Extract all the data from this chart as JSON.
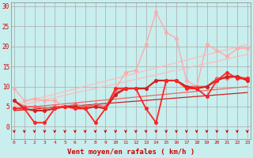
{
  "bg_color": "#c8eeee",
  "grid_color": "#aaaaaa",
  "xlabel": "Vent moyen/en rafales ( km/h )",
  "x_ticks": [
    0,
    1,
    2,
    3,
    4,
    5,
    6,
    7,
    8,
    9,
    10,
    11,
    12,
    13,
    14,
    15,
    16,
    17,
    18,
    19,
    20,
    21,
    22,
    23
  ],
  "ylim": [
    -3,
    31
  ],
  "xlim": [
    -0.3,
    23.3
  ],
  "y_ticks": [
    0,
    5,
    10,
    15,
    20,
    25,
    30
  ],
  "lines": [
    {
      "x": [
        0,
        1,
        2,
        3,
        4,
        5,
        6,
        7,
        8,
        9,
        10,
        11,
        12,
        13,
        14,
        15,
        16,
        17,
        18,
        19,
        20,
        21,
        22,
        23
      ],
      "y": [
        9.5,
        6.5,
        7.0,
        6.5,
        6.5,
        5.0,
        5.0,
        5.0,
        5.0,
        5.0,
        9.5,
        13.5,
        14.0,
        20.5,
        28.5,
        23.5,
        22.0,
        11.5,
        10.0,
        20.5,
        19.0,
        17.5,
        19.5,
        19.5
      ],
      "color": "#ffaaaa",
      "marker": "o",
      "markersize": 2.5,
      "linewidth": 1.0
    },
    {
      "x": [
        0,
        1,
        2,
        3,
        4,
        5,
        6,
        7,
        8,
        9,
        10,
        11,
        12,
        13,
        14,
        15,
        16,
        17,
        18,
        19,
        20,
        21,
        22,
        23
      ],
      "y": [
        6.5,
        5.0,
        5.0,
        4.5,
        5.0,
        5.0,
        5.5,
        5.0,
        5.5,
        5.0,
        8.5,
        9.5,
        9.5,
        9.5,
        11.5,
        11.5,
        11.5,
        10.0,
        10.0,
        10.0,
        12.0,
        12.0,
        12.5,
        12.0
      ],
      "color": "#ee6666",
      "marker": "o",
      "markersize": 2.5,
      "linewidth": 1.2
    },
    {
      "x": [
        0,
        1,
        2,
        3,
        4,
        5,
        6,
        7,
        8,
        9,
        10,
        11,
        12,
        13,
        14,
        15,
        16,
        17,
        18,
        19,
        20,
        21,
        22,
        23
      ],
      "y": [
        6.5,
        4.5,
        4.0,
        4.0,
        4.5,
        5.0,
        5.0,
        4.5,
        5.0,
        4.5,
        8.0,
        9.5,
        9.5,
        9.5,
        11.5,
        11.5,
        11.5,
        10.0,
        9.5,
        10.0,
        11.5,
        12.5,
        12.5,
        11.5
      ],
      "color": "#cc2222",
      "marker": "o",
      "markersize": 2.5,
      "linewidth": 1.5
    },
    {
      "x": [
        0,
        1,
        2,
        3,
        4,
        5,
        6,
        7,
        8,
        9,
        10,
        11,
        12,
        13,
        14,
        15,
        16,
        17,
        18,
        19,
        20,
        21,
        22,
        23
      ],
      "y": [
        4.5,
        4.5,
        1.0,
        1.0,
        4.5,
        5.0,
        4.5,
        4.5,
        1.0,
        4.5,
        9.5,
        9.5,
        9.5,
        4.5,
        1.0,
        11.5,
        11.5,
        9.5,
        9.5,
        7.5,
        11.5,
        13.5,
        12.0,
        12.0
      ],
      "color": "#ff2222",
      "marker": "o",
      "markersize": 2.5,
      "linewidth": 1.3
    },
    {
      "x": [
        0,
        23
      ],
      "y": [
        5.5,
        20.5
      ],
      "color": "#ffbbbb",
      "marker": null,
      "linewidth": 0.9
    },
    {
      "x": [
        0,
        23
      ],
      "y": [
        5.0,
        18.0
      ],
      "color": "#ffbbbb",
      "marker": null,
      "linewidth": 0.9
    },
    {
      "x": [
        0,
        23
      ],
      "y": [
        4.5,
        10.0
      ],
      "color": "#ee6666",
      "marker": null,
      "linewidth": 0.9
    },
    {
      "x": [
        0,
        23
      ],
      "y": [
        4.0,
        8.5
      ],
      "color": "#cc2222",
      "marker": null,
      "linewidth": 0.9
    }
  ],
  "arrow_color": "#cc0000",
  "tick_color": "#cc0000",
  "label_color": "#cc0000"
}
